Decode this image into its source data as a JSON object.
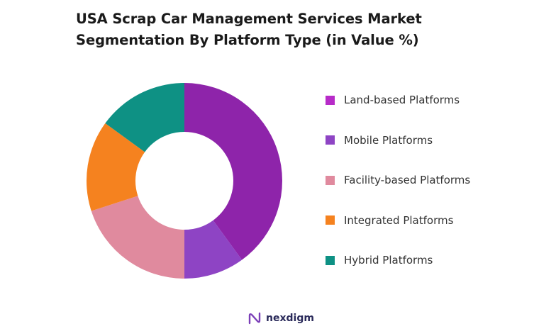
{
  "chart_data": {
    "type": "pie",
    "title_lines": [
      "USA Scrap Car Management Services Market",
      "Segmentation By Platform Type (in Value %)"
    ],
    "donut": true,
    "legend_position": "right",
    "categories": [
      "Land-based Platforms",
      "Mobile Platforms",
      "Facility-based Platforms",
      "Integrated Platforms",
      "Hybrid Platforms"
    ],
    "values": [
      40,
      10,
      20,
      15,
      15
    ],
    "colors": [
      "#8E24AA",
      "#8E44C4",
      "#E08A9E",
      "#F5821F",
      "#0E9184"
    ]
  },
  "legend_swatch_colors": [
    "#B72BC8",
    "#8E44C4",
    "#E08A9E",
    "#F5821F",
    "#0E9184"
  ],
  "brand": {
    "name": "nexdigm",
    "logo_icon": "nexdigm-logo-icon",
    "logo_color": "#7B3FB8"
  }
}
